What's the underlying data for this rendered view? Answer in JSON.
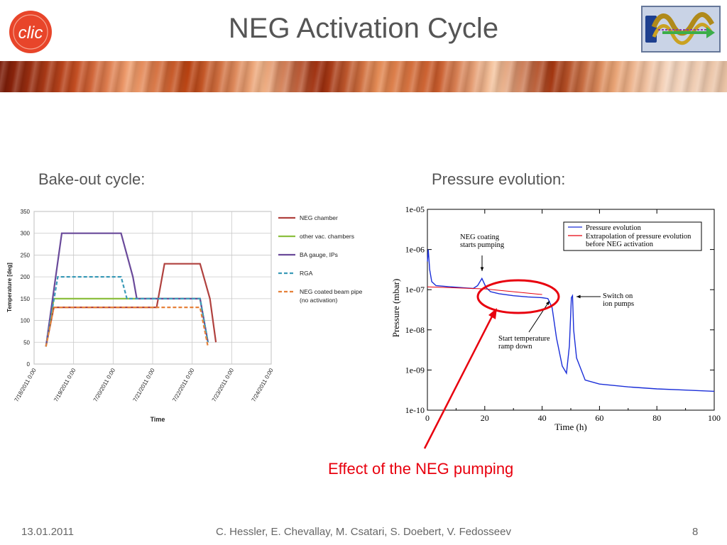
{
  "slide": {
    "title": "NEG Activation Cycle",
    "logo_left_text": "clic",
    "subtitle_left": "Bake-out cycle:",
    "subtitle_right": "Pressure evolution:",
    "effect_label": "Effect of the NEG pumping",
    "footer_date": "13.01.2011",
    "footer_authors": "C. Hessler, E. Chevallay, M. Csatari, S. Doebert, V. Fedosseev",
    "page_number": "8",
    "colors": {
      "title": "#555555",
      "effect": "#e8000e",
      "logo_left": "#e8452a"
    }
  },
  "chart_data": [
    {
      "type": "line",
      "title": "",
      "xlabel": "Time",
      "ylabel": "Temperature [deg]",
      "ylim": [
        0,
        350
      ],
      "y_ticks": [
        "0",
        "50",
        "100",
        "150",
        "200",
        "250",
        "300",
        "350"
      ],
      "x_ticks": [
        "7/18/2011 0:00",
        "7/19/2011 0:00",
        "7/20/2011 0:00",
        "7/21/2011 0:00",
        "7/22/2011 0:00",
        "7/23/2011 0:00",
        "7/24/2011 0:00"
      ],
      "x_unit": "days after 7/18/2011 0:00",
      "grid": true,
      "legend_position": "right",
      "series": [
        {
          "name": "NEG chamber",
          "color": "#b0413e",
          "dash": false,
          "points": [
            [
              0.3,
              40
            ],
            [
              0.5,
              130
            ],
            [
              3.1,
              130
            ],
            [
              3.3,
              230
            ],
            [
              4.2,
              230
            ],
            [
              4.45,
              150
            ],
            [
              4.6,
              50
            ]
          ]
        },
        {
          "name": "other vac. chambers",
          "color": "#8cbf3f",
          "dash": false,
          "points": [
            [
              0.3,
              40
            ],
            [
              0.5,
              150
            ],
            [
              4.2,
              150
            ],
            [
              4.4,
              50
            ]
          ]
        },
        {
          "name": "BA gauge, IPs",
          "color": "#6a4a9a",
          "dash": false,
          "points": [
            [
              0.3,
              40
            ],
            [
              0.7,
              300
            ],
            [
              2.2,
              300
            ],
            [
              2.5,
              200
            ],
            [
              2.6,
              150
            ],
            [
              4.2,
              150
            ],
            [
              4.4,
              50
            ]
          ]
        },
        {
          "name": "RGA",
          "color": "#3b9bb8",
          "dash": true,
          "points": [
            [
              0.3,
              40
            ],
            [
              0.6,
              200
            ],
            [
              2.2,
              200
            ],
            [
              2.35,
              150
            ],
            [
              4.2,
              150
            ],
            [
              4.4,
              50
            ]
          ]
        },
        {
          "name": "NEG coated beam pipe\n(no activation)",
          "color": "#e6813a",
          "dash": true,
          "points": [
            [
              0.3,
              40
            ],
            [
              0.5,
              130
            ],
            [
              4.2,
              130
            ],
            [
              4.4,
              40
            ]
          ]
        }
      ],
      "legend_lines": [
        [
          "NEG chamber"
        ],
        [
          "other vac. chambers"
        ],
        [
          "BA gauge, IPs"
        ],
        [
          "RGA"
        ],
        [
          "NEG coated beam pipe",
          "(no activation)"
        ]
      ]
    },
    {
      "type": "line",
      "title": "",
      "xlabel": "Time (h)",
      "ylabel": "Pressure (mbar)",
      "xlim": [
        0,
        100
      ],
      "ylim_log10": [
        -10,
        -5
      ],
      "y_scale": "log",
      "x_ticks": [
        "0",
        "20",
        "40",
        "60",
        "80",
        "100"
      ],
      "y_ticks": [
        "1e-10",
        "1e-09",
        "1e-08",
        "1e-07",
        "1e-06",
        "1e-05"
      ],
      "legend_position": "top-right",
      "series": [
        {
          "name": "Pressure evolution",
          "color": "#1a2ed8",
          "points": [
            [
              0,
              -6.3
            ],
            [
              0.3,
              -6.0
            ],
            [
              0.8,
              -6.5
            ],
            [
              1.5,
              -6.8
            ],
            [
              3,
              -6.9
            ],
            [
              8,
              -6.93
            ],
            [
              14,
              -6.96
            ],
            [
              16,
              -6.97
            ],
            [
              17.5,
              -6.9
            ],
            [
              19,
              -6.72
            ],
            [
              20.5,
              -6.95
            ],
            [
              22,
              -7.05
            ],
            [
              25,
              -7.1
            ],
            [
              30,
              -7.15
            ],
            [
              35,
              -7.18
            ],
            [
              40,
              -7.2
            ],
            [
              42,
              -7.22
            ],
            [
              43.5,
              -7.45
            ],
            [
              45,
              -8.2
            ],
            [
              47,
              -8.9
            ],
            [
              48.5,
              -9.08
            ],
            [
              49.5,
              -8.4
            ],
            [
              50.2,
              -7.2
            ],
            [
              50.6,
              -7.15
            ],
            [
              51,
              -8.0
            ],
            [
              52,
              -8.7
            ],
            [
              55,
              -9.25
            ],
            [
              60,
              -9.35
            ],
            [
              70,
              -9.42
            ],
            [
              80,
              -9.47
            ],
            [
              90,
              -9.5
            ],
            [
              100,
              -9.53
            ]
          ]
        },
        {
          "name": "Extrapolation of pressure evolution\nbefore NEG activation",
          "color": "#e8000e",
          "points": [
            [
              0,
              -6.93
            ],
            [
              20,
              -6.98
            ],
            [
              40,
              -7.12
            ]
          ]
        }
      ],
      "legend_lines": [
        [
          "Pressure evolution"
        ],
        [
          "Extrapolation of pressure evolution",
          "before NEG activation"
        ]
      ],
      "annotations": [
        {
          "lines": [
            "NEG coating",
            "starts pumping"
          ],
          "target": [
            19,
            -6.7
          ]
        },
        {
          "lines": [
            "Switch on",
            "ion pumps"
          ],
          "target": [
            51,
            -7.18
          ]
        },
        {
          "lines": [
            "Start temperature",
            "ramp down"
          ],
          "target": [
            42.5,
            -7.25
          ]
        }
      ]
    }
  ]
}
